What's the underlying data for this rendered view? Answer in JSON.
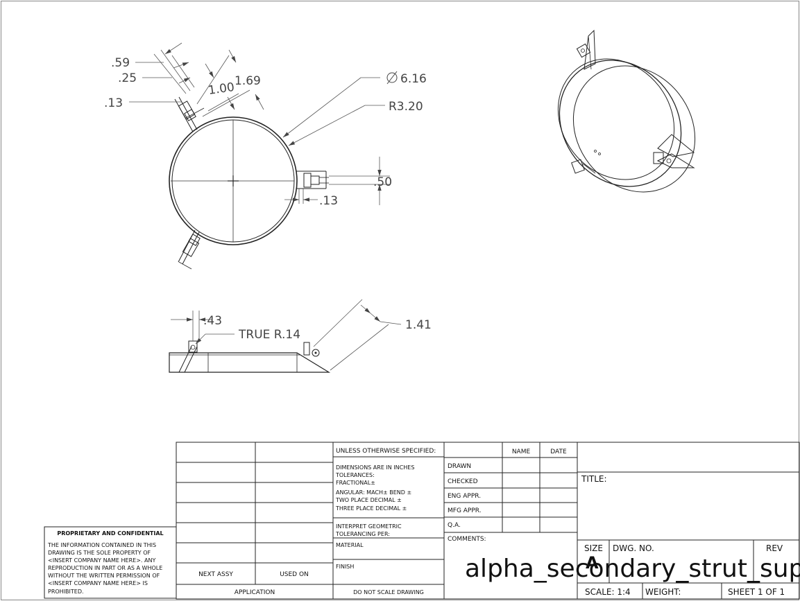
{
  "drawing": {
    "front_view_dims": {
      "d059": ".59",
      "d025": ".25",
      "d013_top": ".13",
      "d100": "1.00",
      "d169": "1.69",
      "diameter": "6.16",
      "radius": "R3.20",
      "d050": ".50",
      "d013_right": ".13"
    },
    "side_view_dims": {
      "d043": ".43",
      "true_radius": "TRUE R.14",
      "d141": "1.41"
    }
  },
  "title_block": {
    "proprietary_title": "PROPRIETARY AND CONFIDENTIAL",
    "proprietary_lines": [
      "THE INFORMATION CONTAINED IN THIS",
      "DRAWING IS THE SOLE PROPERTY OF",
      "<INSERT COMPANY NAME HERE>.  ANY",
      "REPRODUCTION IN PART OR AS A WHOLE",
      "WITHOUT THE WRITTEN PERMISSION OF",
      "<INSERT COMPANY NAME HERE> IS",
      "PROHIBITED."
    ],
    "next_assy": "NEXT ASSY",
    "used_on": "USED ON",
    "application": "APPLICATION",
    "unless": "UNLESS OTHERWISE SPECIFIED:",
    "tolerance_lines": [
      "DIMENSIONS ARE IN INCHES",
      "TOLERANCES:",
      "FRACTIONAL±",
      "ANGULAR: MACH±    BEND ±",
      "TWO PLACE DECIMAL    ±",
      "THREE PLACE DECIMAL  ±"
    ],
    "interpret_lines": [
      "INTERPRET GEOMETRIC",
      "TOLERANCING PER:"
    ],
    "material": "MATERIAL",
    "finish": "FINISH",
    "do_not_scale": "DO NOT SCALE DRAWING",
    "name_header": "NAME",
    "date_header": "DATE",
    "roles": [
      "DRAWN",
      "CHECKED",
      "ENG APPR.",
      "MFG APPR.",
      "Q.A."
    ],
    "comments": "COMMENTS:",
    "title_label": "TITLE:",
    "size_label": "SIZE",
    "size_value": "A",
    "dwg_no_label": "DWG.  NO.",
    "rev_label": "REV",
    "dwg_no": "alpha_secondary_strut_sup",
    "scale": "SCALE: 1:4",
    "weight": "WEIGHT:",
    "sheet": "SHEET 1 OF 1"
  }
}
